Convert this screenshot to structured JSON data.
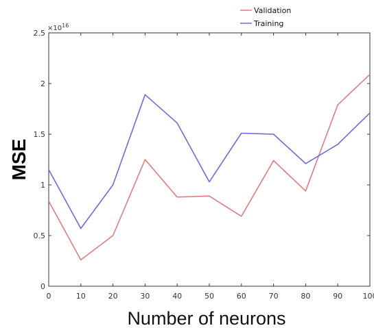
{
  "chart_data": {
    "type": "line",
    "x": [
      0,
      10,
      20,
      30,
      40,
      50,
      60,
      70,
      80,
      90,
      100
    ],
    "series": [
      {
        "name": "Validation",
        "color": "#e07b7b",
        "values": [
          0.84,
          0.26,
          0.5,
          1.25,
          0.88,
          0.89,
          0.69,
          1.24,
          0.94,
          1.79,
          2.09
        ]
      },
      {
        "name": "Training",
        "color": "#6b6bde",
        "values": [
          1.15,
          0.57,
          1.0,
          1.89,
          1.61,
          1.03,
          1.51,
          1.5,
          1.21,
          1.4,
          1.71
        ]
      }
    ],
    "xlabel": "Number of neurons",
    "ylabel": "MSE",
    "xlim": [
      0,
      100
    ],
    "ylim": [
      0,
      2.5
    ],
    "x_ticks": [
      "0",
      "10",
      "20",
      "30",
      "40",
      "50",
      "60",
      "70",
      "80",
      "90",
      "100"
    ],
    "y_ticks": [
      "0",
      "0.5",
      "1",
      "1.5",
      "2",
      "2.5"
    ],
    "y_exponent": {
      "base": "×10",
      "power": "16"
    },
    "grid": false,
    "legend_position": "top-right"
  }
}
